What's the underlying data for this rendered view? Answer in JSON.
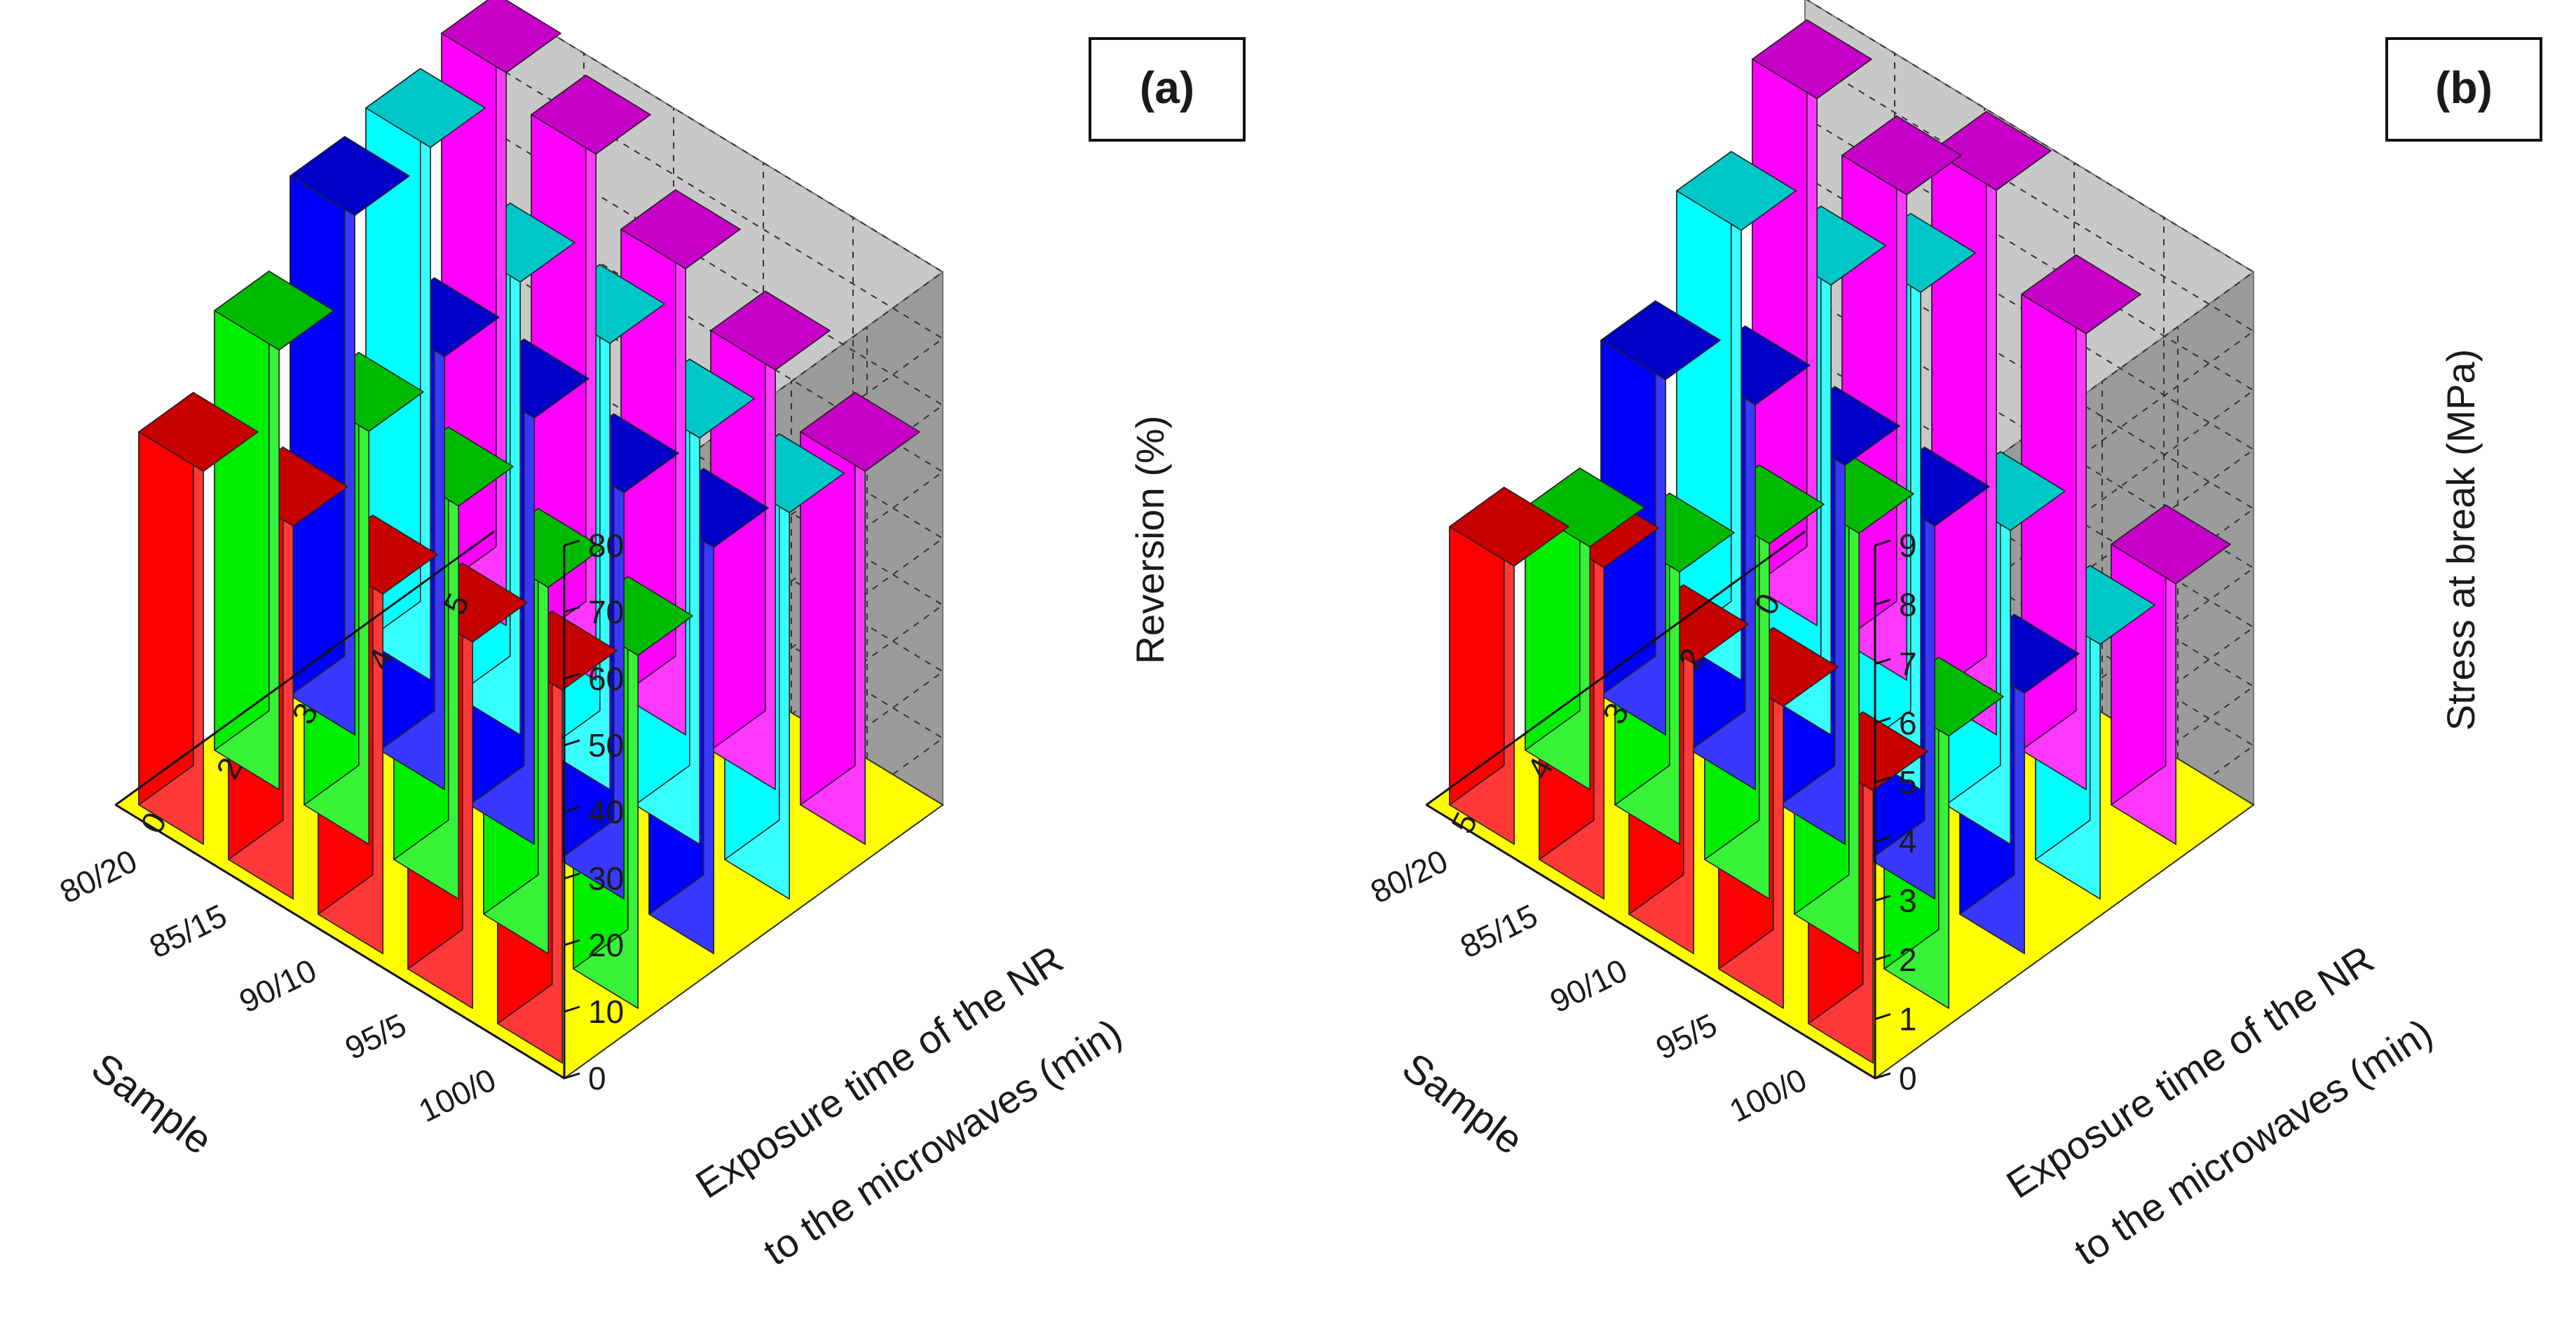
{
  "chart_data": [
    {
      "type": "bar3d",
      "panel_label": "(a)",
      "zlabel": "Reversion (%)",
      "xlabel": "Sample",
      "ylabel_lines": [
        "Exposure time of the NR",
        "to the microwaves (min)"
      ],
      "samples": [
        "80/20",
        "85/15",
        "90/10",
        "95/5",
        "100/0"
      ],
      "times": [
        "0",
        "2",
        "3",
        "4",
        "5"
      ],
      "zlim": [
        0,
        80
      ],
      "zticks": [
        "0",
        "10",
        "20",
        "30",
        "40",
        "50",
        "60",
        "70",
        "80"
      ],
      "series": [
        {
          "name": "0",
          "color": "#ff0000",
          "values": [
            56,
            56,
            54,
            55,
            56
          ]
        },
        {
          "name": "2",
          "color": "#00ee00",
          "values": [
            66,
            62,
            59,
            55,
            53
          ]
        },
        {
          "name": "3",
          "color": "#0000ff",
          "values": [
            78,
            65,
            64,
            61,
            61
          ]
        },
        {
          "name": "4",
          "color": "#00ffff",
          "values": [
            80,
            68,
            67,
            61,
            58
          ]
        },
        {
          "name": "5",
          "color": "#ff00ff",
          "values": [
            83,
            79,
            70,
            63,
            56
          ]
        }
      ]
    },
    {
      "type": "bar3d",
      "panel_label": "(b)",
      "zlabel": "Stress at break (MPa)",
      "xlabel": "Sample",
      "ylabel_lines": [
        "Exposure time of the NR",
        "to the microwaves (min)"
      ],
      "samples": [
        "80/20",
        "85/15",
        "90/10",
        "95/5",
        "100/0"
      ],
      "times": [
        "0",
        "2",
        "3",
        "4",
        "5"
      ],
      "zlim": [
        0,
        9
      ],
      "zticks": [
        "0",
        "1",
        "2",
        "3",
        "4",
        "5",
        "6",
        "7",
        "8",
        "9"
      ],
      "series": [
        {
          "name": "5",
          "color": "#ff0000",
          "values": [
            4.7,
            5.6,
            4.9,
            5.1,
            4.6
          ]
        },
        {
          "name": "4",
          "color": "#00ee00",
          "values": [
            4.1,
            4.6,
            6.0,
            7.1,
            4.6
          ]
        },
        {
          "name": "3",
          "color": "#0000ff",
          "values": [
            6.0,
            6.5,
            6.4,
            6.3,
            4.4
          ]
        },
        {
          "name": "2",
          "color": "#00ffff",
          "values": [
            7.6,
            7.6,
            8.4,
            5.3,
            4.3
          ]
        },
        {
          "name": "0",
          "color": "#ff00ff",
          "values": [
            8.9,
            8.2,
            9.2,
            7.7,
            4.4
          ]
        }
      ]
    }
  ]
}
